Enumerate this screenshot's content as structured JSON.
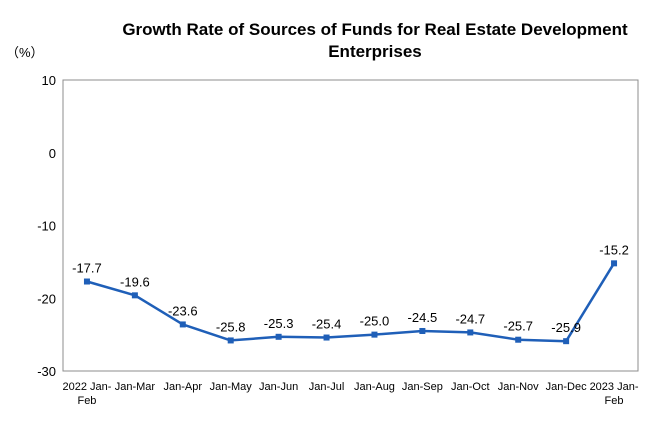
{
  "chart_data": {
    "type": "line",
    "title_line1": "Growth Rate of Sources of Funds for Real Estate Development",
    "title_line2": "Enterprises",
    "unit_label": "（%）",
    "categories": [
      [
        "2022 Jan-",
        "Feb"
      ],
      [
        "Jan-Mar"
      ],
      [
        "Jan-Apr"
      ],
      [
        "Jan-May"
      ],
      [
        "Jan-Jun"
      ],
      [
        "Jan-Jul"
      ],
      [
        "Jan-Aug"
      ],
      [
        "Jan-Sep"
      ],
      [
        "Jan-Oct"
      ],
      [
        "Jan-Nov"
      ],
      [
        "Jan-Dec"
      ],
      [
        "2023  Jan-",
        "Feb"
      ]
    ],
    "values": [
      -17.7,
      -19.6,
      -23.6,
      -25.8,
      -25.3,
      -25.4,
      -25.0,
      -24.5,
      -24.7,
      -25.7,
      -25.9,
      -15.2
    ],
    "data_labels": [
      "-17.7",
      "-19.6",
      "-23.6",
      "-25.8",
      "-25.3",
      "-25.4",
      "-25.0",
      "-24.5",
      "-24.7",
      "-25.7",
      "-25.9",
      "-15.2"
    ],
    "ylim": [
      -30,
      10
    ],
    "yticks": [
      10,
      0,
      -10,
      -20,
      -30
    ],
    "ytick_labels": [
      "10",
      "0",
      "-10",
      "-20",
      "-30"
    ],
    "grid": false,
    "line_color": "#1F5FB8",
    "marker_color": "#1F5FB8",
    "frame_color": "#8C8C8C"
  }
}
